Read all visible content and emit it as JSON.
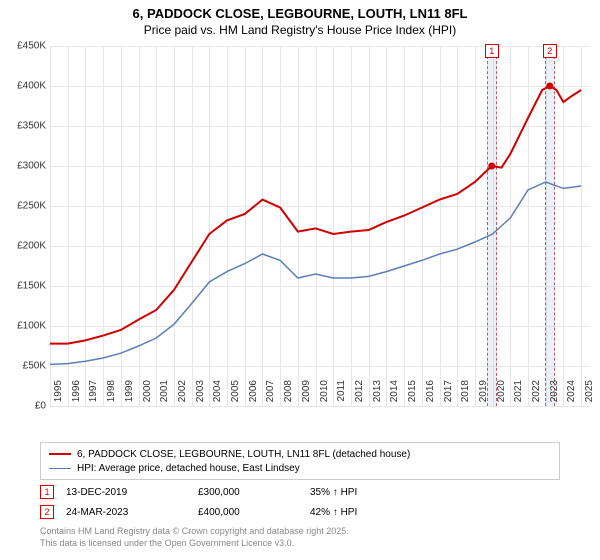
{
  "title": {
    "line1": "6, PADDOCK CLOSE, LEGBOURNE, LOUTH, LN11 8FL",
    "line2": "Price paid vs. HM Land Registry's House Price Index (HPI)",
    "fontsize_line1": 13,
    "fontsize_line2": 12
  },
  "chart": {
    "type": "line",
    "background_color": "#ffffff",
    "grid_color": "#e6e6e6",
    "x": {
      "min": 1995,
      "max": 2025.5,
      "ticks": [
        1995,
        1996,
        1997,
        1998,
        1999,
        2000,
        2001,
        2002,
        2003,
        2004,
        2005,
        2006,
        2007,
        2008,
        2009,
        2010,
        2011,
        2012,
        2013,
        2014,
        2015,
        2016,
        2017,
        2018,
        2019,
        2020,
        2021,
        2022,
        2023,
        2024,
        2025
      ],
      "label_fontsize": 10,
      "label_rotation": -90
    },
    "y": {
      "min": 0,
      "max": 450000,
      "ticks": [
        0,
        50000,
        100000,
        150000,
        200000,
        250000,
        300000,
        350000,
        400000,
        450000
      ],
      "tick_labels": [
        "£0",
        "£50K",
        "£100K",
        "£150K",
        "£200K",
        "£250K",
        "£300K",
        "£350K",
        "£400K",
        "£450K"
      ],
      "label_fontsize": 10
    },
    "series": [
      {
        "name": "price_paid",
        "label": "6, PADDOCK CLOSE, LEGBOURNE, LOUTH, LN11 8FL (detached house)",
        "color": "#d00000",
        "line_width": 2,
        "points": [
          [
            1995,
            78000
          ],
          [
            1996,
            78000
          ],
          [
            1997,
            82000
          ],
          [
            1998,
            88000
          ],
          [
            1999,
            95000
          ],
          [
            2000,
            108000
          ],
          [
            2001,
            120000
          ],
          [
            2002,
            145000
          ],
          [
            2003,
            180000
          ],
          [
            2004,
            215000
          ],
          [
            2005,
            232000
          ],
          [
            2006,
            240000
          ],
          [
            2007,
            258000
          ],
          [
            2008,
            248000
          ],
          [
            2009,
            218000
          ],
          [
            2010,
            222000
          ],
          [
            2011,
            215000
          ],
          [
            2012,
            218000
          ],
          [
            2013,
            220000
          ],
          [
            2014,
            230000
          ],
          [
            2015,
            238000
          ],
          [
            2016,
            248000
          ],
          [
            2017,
            258000
          ],
          [
            2018,
            265000
          ],
          [
            2019,
            280000
          ],
          [
            2019.95,
            300000
          ],
          [
            2020.5,
            298000
          ],
          [
            2021,
            315000
          ],
          [
            2022,
            360000
          ],
          [
            2022.8,
            395000
          ],
          [
            2023.23,
            400000
          ],
          [
            2023.6,
            395000
          ],
          [
            2024,
            380000
          ],
          [
            2024.5,
            388000
          ],
          [
            2025,
            395000
          ]
        ]
      },
      {
        "name": "hpi",
        "label": "HPI: Average price, detached house, East Lindsey",
        "color": "#5b7fb5",
        "line_width": 1.5,
        "points": [
          [
            1995,
            52000
          ],
          [
            1996,
            53000
          ],
          [
            1997,
            56000
          ],
          [
            1998,
            60000
          ],
          [
            1999,
            66000
          ],
          [
            2000,
            75000
          ],
          [
            2001,
            85000
          ],
          [
            2002,
            102000
          ],
          [
            2003,
            128000
          ],
          [
            2004,
            155000
          ],
          [
            2005,
            168000
          ],
          [
            2006,
            178000
          ],
          [
            2007,
            190000
          ],
          [
            2008,
            182000
          ],
          [
            2009,
            160000
          ],
          [
            2010,
            165000
          ],
          [
            2011,
            160000
          ],
          [
            2012,
            160000
          ],
          [
            2013,
            162000
          ],
          [
            2014,
            168000
          ],
          [
            2015,
            175000
          ],
          [
            2016,
            182000
          ],
          [
            2017,
            190000
          ],
          [
            2018,
            196000
          ],
          [
            2019,
            205000
          ],
          [
            2020,
            215000
          ],
          [
            2021,
            235000
          ],
          [
            2022,
            270000
          ],
          [
            2023,
            280000
          ],
          [
            2024,
            272000
          ],
          [
            2025,
            275000
          ]
        ]
      }
    ],
    "events": [
      {
        "n": "1",
        "x": 2019.95,
        "date": "13-DEC-2019",
        "price": "£300,000",
        "pct": "35% ↑ HPI"
      },
      {
        "n": "2",
        "x": 2023.23,
        "date": "24-MAR-2023",
        "price": "£400,000",
        "pct": "42% ↑ HPI"
      }
    ],
    "event_band_color": "rgba(180,200,230,0.25)",
    "event_border_color": "#c06060",
    "event_badge_border": "#d00000"
  },
  "legend": {
    "border_color": "#cccccc",
    "fontsize": 10
  },
  "footer": {
    "line1": "Contains HM Land Registry data © Crown copyright and database right 2025.",
    "line2": "This data is licensed under the Open Government Licence v3.0.",
    "color": "#888888",
    "fontsize": 9
  }
}
